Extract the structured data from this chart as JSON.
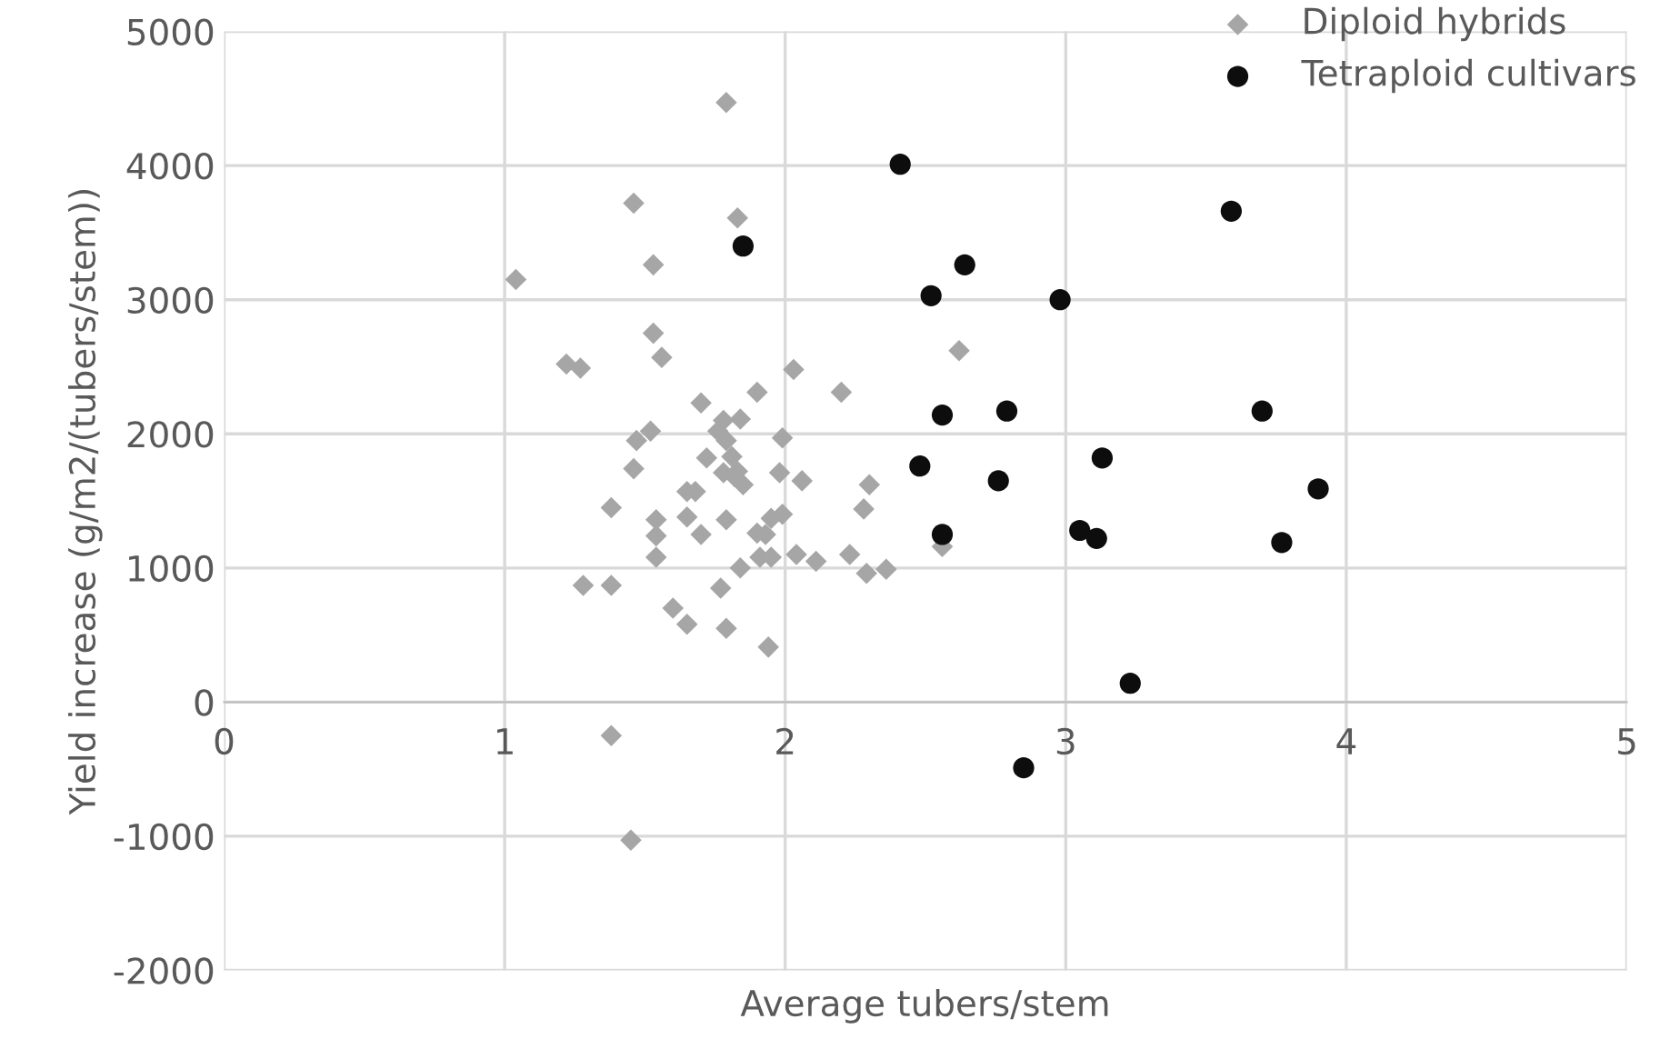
{
  "chart_data": {
    "type": "scatter",
    "xlabel": "Average tubers/stem",
    "ylabel": "Yield increase (g/m2/(tubers/stem))",
    "xlim": [
      0,
      5
    ],
    "ylim": [
      -2000,
      5000
    ],
    "xticks": [
      0,
      1,
      2,
      3,
      4,
      5
    ],
    "yticks": [
      -2000,
      -1000,
      0,
      1000,
      2000,
      3000,
      4000,
      5000
    ],
    "grid": true,
    "legend": "top right",
    "series": [
      {
        "name": "Diploid hybrids",
        "color": "#a6a6a6",
        "marker": "diamond",
        "x": [
          1.79,
          1.46,
          1.83,
          1.04,
          1.53,
          1.53,
          1.56,
          1.22,
          1.27,
          2.03,
          2.62,
          1.9,
          2.2,
          1.7,
          1.84,
          1.78,
          1.76,
          1.52,
          1.47,
          1.79,
          1.99,
          1.72,
          1.81,
          1.83,
          1.46,
          1.78,
          1.98,
          1.82,
          1.85,
          2.06,
          2.3,
          1.68,
          1.65,
          1.38,
          2.28,
          1.65,
          1.54,
          1.79,
          1.95,
          1.99,
          1.9,
          1.93,
          1.54,
          1.7,
          2.56,
          1.54,
          1.91,
          1.95,
          2.04,
          2.23,
          2.11,
          1.84,
          2.29,
          2.36,
          1.28,
          1.38,
          1.77,
          1.6,
          1.65,
          1.79,
          1.94,
          1.38,
          1.45
        ],
        "values": [
          4470,
          3720,
          3610,
          3150,
          3260,
          2750,
          2570,
          2520,
          2490,
          2480,
          2620,
          2310,
          2310,
          2230,
          2110,
          2100,
          2020,
          2020,
          1950,
          1950,
          1970,
          1820,
          1830,
          1720,
          1740,
          1710,
          1710,
          1680,
          1620,
          1650,
          1620,
          1570,
          1570,
          1450,
          1440,
          1380,
          1360,
          1360,
          1370,
          1400,
          1260,
          1250,
          1240,
          1250,
          1160,
          1080,
          1080,
          1080,
          1100,
          1100,
          1050,
          1000,
          960,
          990,
          870,
          870,
          850,
          700,
          580,
          550,
          410,
          -250,
          -1030
        ]
      },
      {
        "name": "Tetraploid cultivars",
        "color": "#0d0d0d",
        "marker": "circle",
        "x": [
          2.41,
          1.85,
          2.64,
          2.52,
          2.98,
          3.59,
          2.56,
          2.79,
          3.7,
          3.13,
          2.48,
          2.76,
          3.9,
          2.56,
          3.05,
          3.11,
          3.77,
          3.23,
          2.85
        ],
        "values": [
          4010,
          3400,
          3260,
          3030,
          3000,
          3660,
          2140,
          2170,
          2170,
          1820,
          1760,
          1650,
          1590,
          1250,
          1280,
          1220,
          1190,
          140,
          -490
        ]
      }
    ]
  }
}
